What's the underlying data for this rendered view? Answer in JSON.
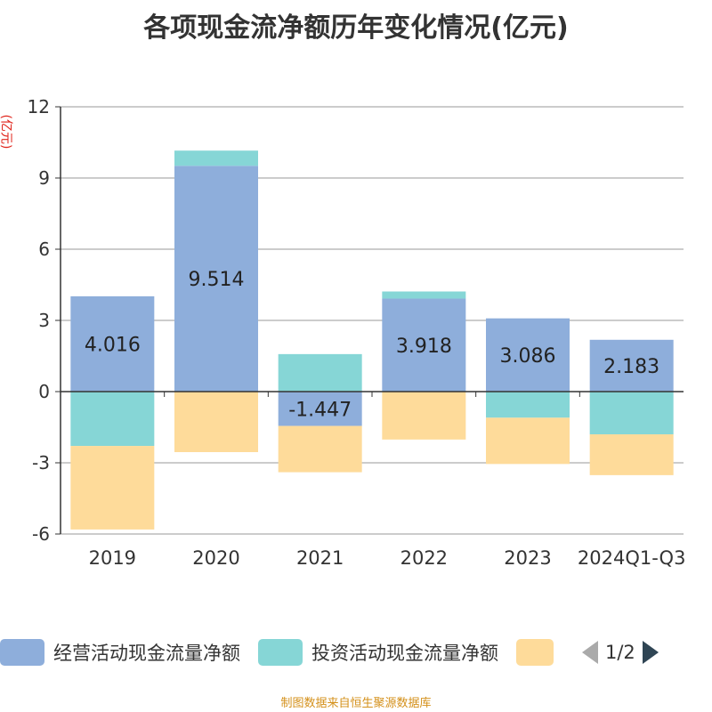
{
  "chart_data": {
    "type": "bar",
    "stacked": true,
    "title": "各项现金流净额历年变化情况(亿元)",
    "ylabel": "(亿元)",
    "xlabel": "",
    "ylim": [
      -6,
      12
    ],
    "yticks": [
      -6,
      -3,
      0,
      3,
      6,
      9,
      12
    ],
    "grid": true,
    "legend_position": "bottom",
    "categories": [
      "2019",
      "2020",
      "2021",
      "2022",
      "2023",
      "2024Q1-Q3"
    ],
    "series": [
      {
        "name": "经营活动现金流量净额",
        "color": "#8eaedb",
        "values": [
          4.016,
          9.514,
          -1.447,
          3.918,
          3.086,
          2.183
        ],
        "labels": [
          "4.016",
          "9.514",
          "-1.447",
          "3.918",
          "3.086",
          "2.183"
        ]
      },
      {
        "name": "投资活动现金流量净额",
        "color": "#86d6d6",
        "values": [
          -2.29,
          0.64,
          1.58,
          0.3,
          -1.1,
          -1.8
        ]
      },
      {
        "name": "",
        "color": "#fedb9a",
        "values": [
          -3.52,
          -2.55,
          -1.95,
          -2.02,
          -1.95,
          -1.72
        ]
      }
    ]
  },
  "legend": {
    "page": "1/2"
  },
  "footer": "制图数据来自恒生聚源数据库"
}
